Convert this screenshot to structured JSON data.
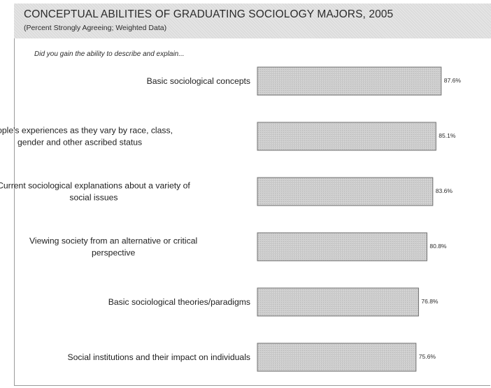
{
  "header": {
    "title": "CONCEPTUAL ABILITIES OF GRADUATING SOCIOLOGY MAJORS, 2005",
    "subtitle": "(Percent Strongly Agreeing; Weighted Data)"
  },
  "question": "Did you gain the ability to describe and explain...",
  "colors": {
    "bar_fill": "#c9c9c9",
    "bar_stroke": "#6e6e6e",
    "header_bg": "#e4e4e4"
  },
  "chart_data": {
    "type": "bar",
    "orientation": "horizontal",
    "categories": [
      [
        "Basic sociological concepts"
      ],
      [
        "People's experiences as they vary by race, class,",
        "gender and other ascribed status"
      ],
      [
        "Current sociological explanations about a variety of",
        "social issues"
      ],
      [
        "Viewing society from an alternative or critical",
        "perspective"
      ],
      [
        "Basic sociological theories/paradigms"
      ],
      [
        "Social institutions and their impact on individuals"
      ]
    ],
    "values": [
      87.6,
      85.1,
      83.6,
      80.8,
      76.8,
      75.6
    ],
    "value_labels": [
      "87.6%",
      "85.1%",
      "83.6%",
      "80.8%",
      "76.8%",
      "75.6%"
    ],
    "title": "",
    "xlabel": "",
    "ylabel": "",
    "grid": false,
    "legend": "none"
  }
}
